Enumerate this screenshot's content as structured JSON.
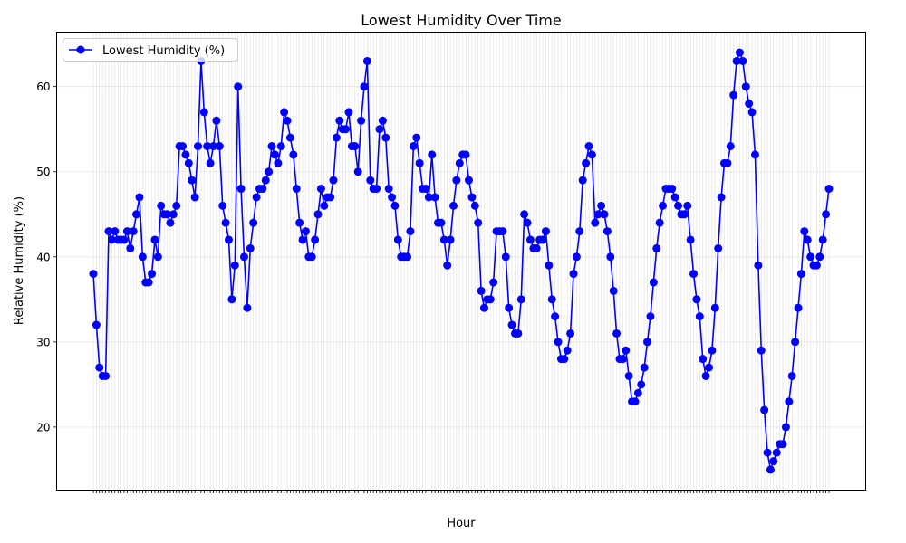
{
  "chart_data": {
    "type": "line",
    "title": "Lowest Humidity Over Time",
    "xlabel": "Hour",
    "ylabel": "Relative Humidity (%)",
    "ylim": [
      12.6,
      66.4
    ],
    "yticks": [
      20,
      30,
      40,
      50,
      60
    ],
    "grid": true,
    "legend_position": "top-left",
    "series": [
      {
        "name": "Lowest Humidity (%)",
        "color": "#0000ff",
        "marker": "circle",
        "values": [
          38,
          32,
          27,
          26,
          26,
          43,
          42,
          43,
          42,
          42,
          42,
          43,
          41,
          43,
          45,
          47,
          40,
          37,
          37,
          38,
          42,
          40,
          46,
          45,
          45,
          44,
          45,
          46,
          53,
          53,
          52,
          51,
          49,
          47,
          53,
          63,
          57,
          53,
          51,
          53,
          56,
          53,
          46,
          44,
          42,
          35,
          39,
          60,
          48,
          40,
          34,
          41,
          44,
          47,
          48,
          48,
          49,
          50,
          53,
          52,
          51,
          53,
          57,
          56,
          54,
          52,
          48,
          44,
          42,
          43,
          40,
          40,
          42,
          45,
          48,
          46,
          47,
          47,
          49,
          54,
          56,
          55,
          55,
          57,
          53,
          53,
          50,
          56,
          60,
          63,
          49,
          48,
          48,
          55,
          56,
          54,
          48,
          47,
          46,
          42,
          40,
          40,
          40,
          43,
          53,
          54,
          51,
          48,
          48,
          47,
          52,
          47,
          44,
          44,
          42,
          39,
          42,
          46,
          49,
          51,
          52,
          52,
          49,
          47,
          46,
          44,
          36,
          34,
          35,
          35,
          37,
          43,
          43,
          43,
          40,
          34,
          32,
          31,
          31,
          35,
          45,
          44,
          42,
          41,
          41,
          42,
          42,
          43,
          39,
          35,
          33,
          30,
          28,
          28,
          29,
          31,
          38,
          40,
          43,
          49,
          51,
          53,
          52,
          44,
          45,
          46,
          45,
          43,
          40,
          36,
          31,
          28,
          28,
          29,
          26,
          23,
          23,
          24,
          25,
          27,
          30,
          33,
          37,
          41,
          44,
          46,
          48,
          48,
          48,
          47,
          46,
          45,
          45,
          46,
          42,
          38,
          35,
          33,
          28,
          26,
          27,
          29,
          34,
          41,
          47,
          51,
          51,
          53,
          59,
          63,
          64,
          63,
          60,
          58,
          57,
          52,
          39,
          29,
          22,
          17,
          15,
          16,
          17,
          18,
          18,
          20,
          23,
          26,
          30,
          34,
          38,
          43,
          42,
          40,
          39,
          39,
          40,
          42,
          45,
          48
        ]
      }
    ]
  }
}
